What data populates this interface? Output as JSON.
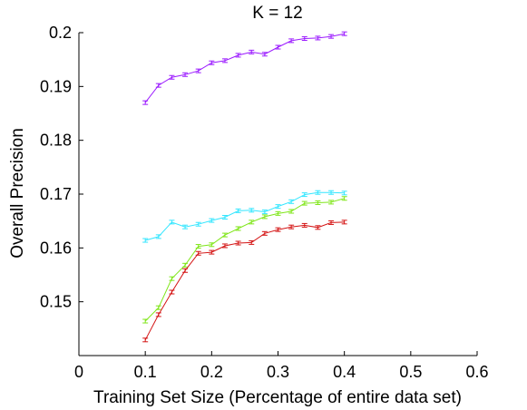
{
  "chart_data": {
    "type": "line",
    "title": "K = 12",
    "xlabel": "Training Set Size (Percentage of entire data set)",
    "ylabel": "Overall Precision",
    "xlim": [
      0,
      0.6
    ],
    "ylim": [
      0.14,
      0.2
    ],
    "xticks": [
      0,
      0.1,
      0.2,
      0.3,
      0.4,
      0.5,
      0.6
    ],
    "xtick_labels": [
      "0",
      "0.1",
      "0.2",
      "0.3",
      "0.4",
      "0.5",
      "0.6"
    ],
    "yticks": [
      0.15,
      0.16,
      0.17,
      0.18,
      0.19,
      0.2
    ],
    "ytick_labels": [
      "0.15",
      "0.16",
      "0.17",
      "0.18",
      "0.19",
      "0.2"
    ],
    "grid": false,
    "legend": "none",
    "series": [
      {
        "color": "#9b1aff",
        "x": [
          0.1,
          0.12,
          0.14,
          0.16,
          0.18,
          0.2,
          0.22,
          0.24,
          0.26,
          0.28,
          0.3,
          0.32,
          0.34,
          0.36,
          0.38,
          0.4
        ],
        "y": [
          0.187,
          0.1902,
          0.1917,
          0.1922,
          0.1929,
          0.1944,
          0.1948,
          0.1958,
          0.1964,
          0.196,
          0.1973,
          0.1985,
          0.1989,
          0.199,
          0.1993,
          0.1998
        ]
      },
      {
        "color": "#33e6ff",
        "x": [
          0.1,
          0.12,
          0.14,
          0.16,
          0.18,
          0.2,
          0.22,
          0.24,
          0.26,
          0.28,
          0.3,
          0.32,
          0.34,
          0.36,
          0.38,
          0.4
        ],
        "y": [
          0.1614,
          0.1621,
          0.1648,
          0.1639,
          0.1644,
          0.1651,
          0.1657,
          0.1669,
          0.167,
          0.1667,
          0.1677,
          0.1686,
          0.1699,
          0.1703,
          0.1703,
          0.1702
        ]
      },
      {
        "color": "#80e61a",
        "x": [
          0.1,
          0.12,
          0.14,
          0.16,
          0.18,
          0.2,
          0.22,
          0.24,
          0.26,
          0.28,
          0.3,
          0.32,
          0.34,
          0.36,
          0.38,
          0.4
        ],
        "y": [
          0.1464,
          0.1489,
          0.1543,
          0.1568,
          0.1603,
          0.1606,
          0.1624,
          0.1636,
          0.1648,
          0.1658,
          0.1664,
          0.1668,
          0.1683,
          0.1684,
          0.1685,
          0.1692
        ]
      },
      {
        "color": "#d41414",
        "x": [
          0.1,
          0.12,
          0.14,
          0.16,
          0.18,
          0.2,
          0.22,
          0.24,
          0.26,
          0.28,
          0.3,
          0.32,
          0.34,
          0.36,
          0.38,
          0.4
        ],
        "y": [
          0.1429,
          0.1476,
          0.1518,
          0.1558,
          0.159,
          0.1592,
          0.1604,
          0.1609,
          0.161,
          0.1627,
          0.1634,
          0.1639,
          0.1642,
          0.1638,
          0.1647,
          0.1648
        ]
      }
    ]
  }
}
